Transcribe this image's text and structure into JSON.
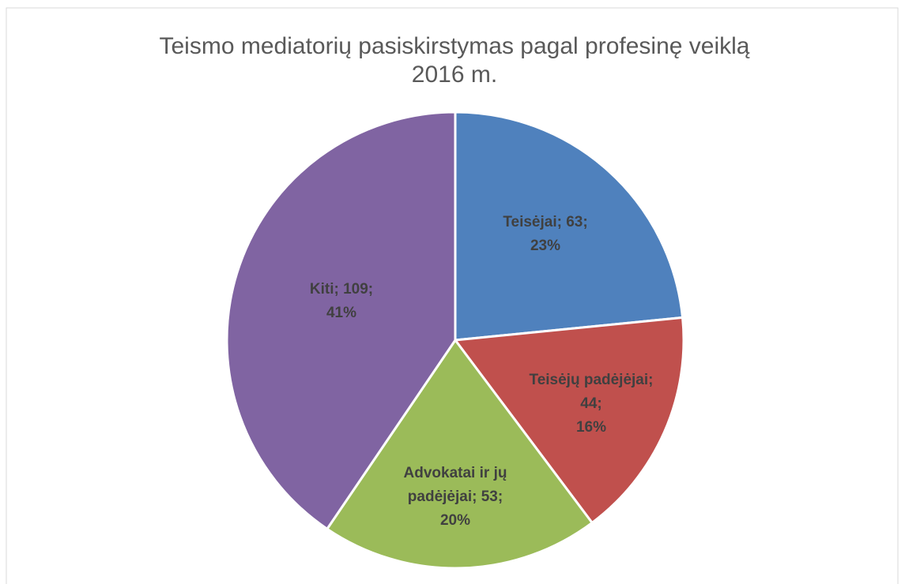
{
  "chart_data": {
    "type": "pie",
    "title": "Teismo mediatorių pasiskirstymas pagal profesinę veiklą 2016 m.",
    "categories": [
      "Teisėjai",
      "Teisėjų padėjėjai",
      "Advokatai ir jų padėjėjai",
      "Kiti"
    ],
    "values": [
      63,
      44,
      53,
      109
    ],
    "value_labels": [
      "Teisėjai; 63; 23%",
      "Teisėjų padėjėjai; 44; 16%",
      "Advokatai ir jų padėjėjai; 53; 20%",
      "Kiti; 109; 41%"
    ],
    "colors": [
      "#4f81bd",
      "#c0504d",
      "#9bbb59",
      "#8064a2"
    ]
  }
}
